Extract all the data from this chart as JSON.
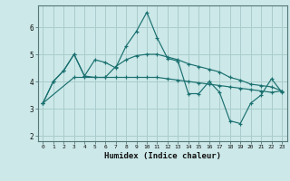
{
  "title": "",
  "xlabel": "Humidex (Indice chaleur)",
  "ylabel": "",
  "background_color": "#cce8e8",
  "grid_color": "#aacccc",
  "line_color": "#1a7070",
  "xlim": [
    -0.5,
    23.5
  ],
  "ylim": [
    1.8,
    6.8
  ],
  "yticks": [
    2,
    3,
    4,
    5,
    6
  ],
  "xticks": [
    0,
    1,
    2,
    3,
    4,
    5,
    6,
    7,
    8,
    9,
    10,
    11,
    12,
    13,
    14,
    15,
    16,
    17,
    18,
    19,
    20,
    21,
    22,
    23
  ],
  "lines": [
    {
      "x": [
        0,
        1,
        2,
        3,
        4,
        5,
        6,
        7,
        8,
        9,
        10,
        11,
        12,
        13,
        14,
        15,
        16,
        17,
        18,
        19,
        20,
        21,
        22,
        23
      ],
      "y": [
        3.2,
        4.0,
        4.4,
        5.0,
        4.2,
        4.8,
        4.7,
        4.5,
        5.3,
        5.85,
        6.55,
        5.6,
        4.85,
        4.75,
        3.55,
        3.55,
        4.0,
        3.6,
        2.55,
        2.45,
        3.2,
        3.5,
        4.1,
        3.6
      ]
    },
    {
      "x": [
        0,
        1,
        2,
        3,
        4,
        5,
        6,
        7,
        8,
        9,
        10,
        11,
        12,
        13,
        14,
        15,
        16,
        17,
        18,
        19,
        20,
        21,
        22,
        23
      ],
      "y": [
        3.2,
        4.0,
        4.4,
        5.0,
        4.2,
        4.15,
        4.15,
        4.55,
        4.8,
        4.95,
        5.0,
        5.0,
        4.9,
        4.8,
        4.65,
        4.55,
        4.45,
        4.35,
        4.15,
        4.05,
        3.9,
        3.85,
        3.8,
        3.65
      ]
    },
    {
      "x": [
        0,
        3,
        4,
        5,
        6,
        7,
        8,
        9,
        10,
        11,
        12,
        13,
        14,
        15,
        16,
        17,
        18,
        19,
        20,
        21,
        22,
        23
      ],
      "y": [
        3.2,
        4.15,
        4.15,
        4.15,
        4.15,
        4.15,
        4.15,
        4.15,
        4.15,
        4.15,
        4.1,
        4.05,
        4.0,
        3.95,
        3.9,
        3.85,
        3.8,
        3.75,
        3.7,
        3.65,
        3.6,
        3.65
      ]
    }
  ]
}
